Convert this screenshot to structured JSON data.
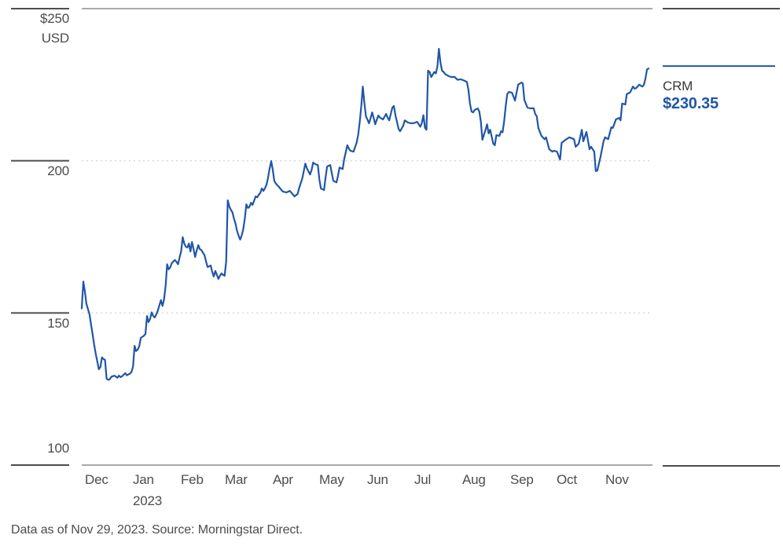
{
  "chart_data": {
    "type": "line",
    "title": "",
    "ylabel": "USD",
    "ylim": [
      100,
      250
    ],
    "x_domain_days": [
      0,
      365
    ],
    "grid": "dotted horizontal gridlines at 150 and 200; solid top and bottom frame lines",
    "legend_position": "right",
    "y_ticks": [
      {
        "value": 250,
        "label": "$250",
        "sublabel": "USD"
      },
      {
        "value": 200,
        "label": "200",
        "sublabel": ""
      },
      {
        "value": 150,
        "label": "150",
        "sublabel": ""
      },
      {
        "value": 100,
        "label": "100",
        "sublabel": ""
      }
    ],
    "x_months": [
      {
        "label": "Dec",
        "day": 2,
        "sublabel": ""
      },
      {
        "label": "Jan",
        "day": 33,
        "sublabel": "2023"
      },
      {
        "label": "Feb",
        "day": 64,
        "sublabel": ""
      },
      {
        "label": "Mar",
        "day": 92,
        "sublabel": ""
      },
      {
        "label": "Apr",
        "day": 123,
        "sublabel": ""
      },
      {
        "label": "May",
        "day": 153,
        "sublabel": ""
      },
      {
        "label": "Jun",
        "day": 184,
        "sublabel": ""
      },
      {
        "label": "Jul",
        "day": 214,
        "sublabel": ""
      },
      {
        "label": "Aug",
        "day": 245,
        "sublabel": ""
      },
      {
        "label": "Sep",
        "day": 276,
        "sublabel": ""
      },
      {
        "label": "Oct",
        "day": 306,
        "sublabel": ""
      },
      {
        "label": "Nov",
        "day": 337,
        "sublabel": ""
      }
    ],
    "series": [
      {
        "name": "CRM",
        "last_price_label": "$230.35",
        "points": [
          [
            0,
            151.5
          ],
          [
            1,
            160.3
          ],
          [
            2,
            157.0
          ],
          [
            3,
            153.0
          ],
          [
            5,
            149.5
          ],
          [
            6,
            146.0
          ],
          [
            7,
            143.0
          ],
          [
            8,
            139.5
          ],
          [
            9,
            136.5
          ],
          [
            10,
            134.0
          ],
          [
            11,
            131.5
          ],
          [
            12,
            132.2
          ],
          [
            13,
            135.4
          ],
          [
            14,
            134.8
          ],
          [
            15,
            134.6
          ],
          [
            16,
            128.4
          ],
          [
            17,
            128.0
          ],
          [
            18,
            128.2
          ],
          [
            19,
            129.0
          ],
          [
            21,
            129.4
          ],
          [
            23,
            128.7
          ],
          [
            24,
            129.4
          ],
          [
            25,
            128.9
          ],
          [
            26,
            129.2
          ],
          [
            28,
            130.2
          ],
          [
            29,
            129.5
          ],
          [
            30,
            129.8
          ],
          [
            31,
            130.0
          ],
          [
            32,
            130.6
          ],
          [
            33,
            132.3
          ],
          [
            34,
            139.2
          ],
          [
            35,
            137.5
          ],
          [
            36,
            137.9
          ],
          [
            37,
            139.0
          ],
          [
            38,
            141.8
          ],
          [
            40,
            142.5
          ],
          [
            41,
            143.1
          ],
          [
            42,
            149.0
          ],
          [
            43,
            147.0
          ],
          [
            44,
            148.0
          ],
          [
            45,
            150.2
          ],
          [
            46,
            149.0
          ],
          [
            47,
            148.5
          ],
          [
            48,
            149.5
          ],
          [
            49,
            150.8
          ],
          [
            51,
            154.2
          ],
          [
            52,
            152.3
          ],
          [
            53,
            154.5
          ],
          [
            54,
            159.0
          ],
          [
            55,
            166.0
          ],
          [
            56,
            164.3
          ],
          [
            57,
            165.0
          ],
          [
            58,
            166.4
          ],
          [
            60,
            167.4
          ],
          [
            61,
            166.8
          ],
          [
            62,
            166.0
          ],
          [
            63,
            168.2
          ],
          [
            64,
            170.2
          ],
          [
            65,
            174.9
          ],
          [
            66,
            172.8
          ],
          [
            67,
            171.8
          ],
          [
            68,
            171.5
          ],
          [
            69,
            172.8
          ],
          [
            70,
            170.2
          ],
          [
            71,
            173.3
          ],
          [
            72,
            171.0
          ],
          [
            73,
            168.4
          ],
          [
            74,
            170.5
          ],
          [
            75,
            172.3
          ],
          [
            76,
            171.0
          ],
          [
            77,
            170.7
          ],
          [
            78,
            169.8
          ],
          [
            79,
            169.0
          ],
          [
            80,
            167.0
          ],
          [
            81,
            165.1
          ],
          [
            82,
            165.3
          ],
          [
            83,
            165.6
          ],
          [
            84,
            163.5
          ],
          [
            85,
            162.0
          ],
          [
            86,
            163.8
          ],
          [
            87,
            162.5
          ],
          [
            88,
            161.2
          ],
          [
            89,
            162.2
          ],
          [
            90,
            163.0
          ],
          [
            91,
            162.5
          ],
          [
            92,
            162.2
          ],
          [
            93,
            166.9
          ],
          [
            94,
            187.0
          ],
          [
            95,
            185.0
          ],
          [
            96,
            183.9
          ],
          [
            97,
            183.1
          ],
          [
            98,
            181.0
          ],
          [
            99,
            179.3
          ],
          [
            100,
            177.0
          ],
          [
            101,
            175.4
          ],
          [
            102,
            174.1
          ],
          [
            103,
            175.5
          ],
          [
            104,
            177.5
          ],
          [
            105,
            181.0
          ],
          [
            106,
            185.7
          ],
          [
            107,
            184.5
          ],
          [
            108,
            184.9
          ],
          [
            109,
            186.2
          ],
          [
            110,
            185.5
          ],
          [
            112,
            188.3
          ],
          [
            113,
            188.0
          ],
          [
            114,
            188.8
          ],
          [
            115,
            189.5
          ],
          [
            116,
            190.9
          ],
          [
            117,
            190.1
          ],
          [
            118,
            191.0
          ],
          [
            119,
            192.2
          ],
          [
            120,
            194.5
          ],
          [
            121,
            197.5
          ],
          [
            122,
            199.9
          ],
          [
            123,
            197.0
          ],
          [
            124,
            193.4
          ],
          [
            125,
            192.5
          ],
          [
            127,
            191.4
          ],
          [
            128,
            190.8
          ],
          [
            129,
            190.1
          ],
          [
            130,
            189.8
          ],
          [
            132,
            189.6
          ],
          [
            133,
            189.9
          ],
          [
            134,
            190.1
          ],
          [
            135,
            189.5
          ],
          [
            137,
            188.3
          ],
          [
            139,
            189.1
          ],
          [
            140,
            191.0
          ],
          [
            142,
            194.2
          ],
          [
            144,
            199.1
          ],
          [
            145,
            197.5
          ],
          [
            147,
            195.5
          ],
          [
            148,
            197.0
          ],
          [
            149,
            199.4
          ],
          [
            150,
            199.0
          ],
          [
            152,
            198.6
          ],
          [
            153,
            194.0
          ],
          [
            154,
            190.9
          ],
          [
            156,
            190.4
          ],
          [
            157,
            194.5
          ],
          [
            158,
            198.1
          ],
          [
            160,
            198.6
          ],
          [
            161,
            196.0
          ],
          [
            162,
            193.4
          ],
          [
            164,
            192.9
          ],
          [
            165,
            195.0
          ],
          [
            166,
            197.8
          ],
          [
            168,
            197.3
          ],
          [
            169,
            200.5
          ],
          [
            171,
            205.1
          ],
          [
            172,
            204.0
          ],
          [
            173,
            203.3
          ],
          [
            175,
            203.0
          ],
          [
            177,
            205.9
          ],
          [
            178,
            208.5
          ],
          [
            179,
            212.8
          ],
          [
            180,
            218.0
          ],
          [
            181,
            224.4
          ],
          [
            182,
            219.0
          ],
          [
            183,
            214.6
          ],
          [
            184,
            213.5
          ],
          [
            185,
            212.3
          ],
          [
            186,
            214.0
          ],
          [
            187,
            215.9
          ],
          [
            188,
            214.0
          ],
          [
            189,
            212.0
          ],
          [
            190,
            213.5
          ],
          [
            191,
            214.9
          ],
          [
            192,
            214.2
          ],
          [
            194,
            213.6
          ],
          [
            195,
            214.5
          ],
          [
            196,
            215.4
          ],
          [
            197,
            214.2
          ],
          [
            198,
            213.3
          ],
          [
            200,
            217.5
          ],
          [
            201,
            218.0
          ],
          [
            202,
            215.0
          ],
          [
            203,
            212.8
          ],
          [
            204,
            210.5
          ],
          [
            205,
            209.7
          ],
          [
            207,
            211.5
          ],
          [
            208,
            213.3
          ],
          [
            210,
            212.6
          ],
          [
            212,
            212.3
          ],
          [
            214,
            212.4
          ],
          [
            216,
            212.8
          ],
          [
            218,
            211.2
          ],
          [
            219,
            212.4
          ],
          [
            220,
            215.0
          ],
          [
            221,
            210.8
          ],
          [
            222,
            210.2
          ],
          [
            223,
            229.6
          ],
          [
            224,
            229.2
          ],
          [
            225,
            227.5
          ],
          [
            226,
            228.3
          ],
          [
            227,
            229.2
          ],
          [
            228,
            228.7
          ],
          [
            229,
            231.0
          ],
          [
            230,
            236.8
          ],
          [
            231,
            232.2
          ],
          [
            232,
            229.6
          ],
          [
            233,
            229.2
          ],
          [
            234,
            228.5
          ],
          [
            236,
            227.9
          ],
          [
            238,
            227.5
          ],
          [
            240,
            227.6
          ],
          [
            242,
            226.6
          ],
          [
            244,
            226.8
          ],
          [
            246,
            226.4
          ],
          [
            248,
            225.9
          ],
          [
            249,
            223.2
          ],
          [
            250,
            218.8
          ],
          [
            251,
            216.2
          ],
          [
            252,
            215.9
          ],
          [
            253,
            216.7
          ],
          [
            255,
            217.2
          ],
          [
            256,
            216.2
          ],
          [
            257,
            212.8
          ],
          [
            258,
            206.9
          ],
          [
            260,
            210.2
          ],
          [
            261,
            212.0
          ],
          [
            262,
            209.0
          ],
          [
            263,
            210.2
          ],
          [
            265,
            205.6
          ],
          [
            266,
            205.1
          ],
          [
            267,
            208.4
          ],
          [
            269,
            208.2
          ],
          [
            270,
            209.7
          ],
          [
            271,
            209.4
          ],
          [
            272,
            213.0
          ],
          [
            273,
            218.0
          ],
          [
            274,
            221.9
          ],
          [
            275,
            222.6
          ],
          [
            277,
            222.4
          ],
          [
            279,
            219.8
          ],
          [
            281,
            225.0
          ],
          [
            283,
            225.7
          ],
          [
            284,
            225.5
          ],
          [
            285,
            220.0
          ],
          [
            287,
            217.5
          ],
          [
            289,
            217.2
          ],
          [
            291,
            217.3
          ],
          [
            292,
            215.4
          ],
          [
            293,
            214.6
          ],
          [
            294,
            210.8
          ],
          [
            296,
            208.2
          ],
          [
            298,
            207.1
          ],
          [
            299,
            207.7
          ],
          [
            301,
            203.8
          ],
          [
            303,
            203.0
          ],
          [
            304,
            203.3
          ],
          [
            306,
            203.0
          ],
          [
            308,
            200.4
          ],
          [
            309,
            205.9
          ],
          [
            312,
            207.1
          ],
          [
            314,
            207.7
          ],
          [
            317,
            207.1
          ],
          [
            318,
            204.6
          ],
          [
            320,
            205.6
          ],
          [
            322,
            210.2
          ],
          [
            323,
            206.4
          ],
          [
            325,
            209.5
          ],
          [
            327,
            203.8
          ],
          [
            328,
            204.6
          ],
          [
            330,
            203.0
          ],
          [
            331,
            196.6
          ],
          [
            332,
            196.8
          ],
          [
            334,
            201.2
          ],
          [
            336,
            206.4
          ],
          [
            337,
            207.7
          ],
          [
            339,
            207.1
          ],
          [
            341,
            211.0
          ],
          [
            342,
            210.8
          ],
          [
            344,
            213.6
          ],
          [
            346,
            214.1
          ],
          [
            347,
            213.3
          ],
          [
            348,
            218.8
          ],
          [
            350,
            218.5
          ],
          [
            351,
            221.9
          ],
          [
            353,
            222.4
          ],
          [
            355,
            224.4
          ],
          [
            356,
            223.7
          ],
          [
            357,
            223.9
          ],
          [
            359,
            225.0
          ],
          [
            361,
            224.4
          ],
          [
            362,
            225.0
          ],
          [
            363,
            227.0
          ],
          [
            364,
            230.0
          ],
          [
            365,
            230.35
          ]
        ]
      }
    ]
  },
  "legend": {
    "symbol": "CRM",
    "price": "$230.35"
  },
  "footer": {
    "note": "Data as of Nov 29, 2023. Source: Morningstar Direct."
  },
  "colors": {
    "line": "#2056a7",
    "price_text": "#2056a7",
    "axis_text": "#4c4c4c",
    "symbol_text": "#383838",
    "tick_dark": "#4d4d4d",
    "border_gray": "#a9a9a9",
    "grid_dotted": "#d8d8d8"
  }
}
